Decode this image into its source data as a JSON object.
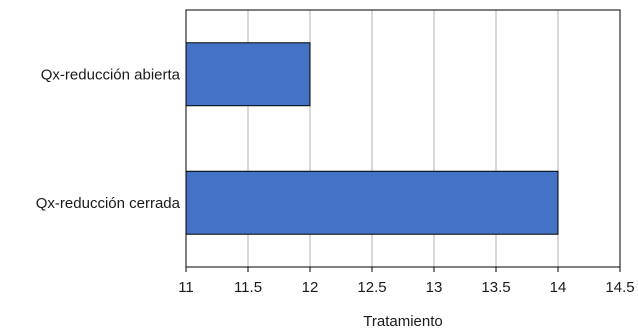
{
  "chart_data": {
    "type": "bar",
    "orientation": "horizontal",
    "categories": [
      "Qx-reducción abierta",
      "Qx-reducción cerrada"
    ],
    "values": [
      12,
      14
    ],
    "xlabel": "Tratamiento",
    "ylabel": "",
    "xlim": [
      11,
      14.5
    ],
    "xticks": [
      "11",
      "11.5",
      "12",
      "12.5",
      "13",
      "13.5",
      "14",
      "14.5"
    ],
    "grid": "vertical",
    "legend": "none",
    "bar_color": "#4472c4",
    "bar_edge_color": "#000000"
  }
}
